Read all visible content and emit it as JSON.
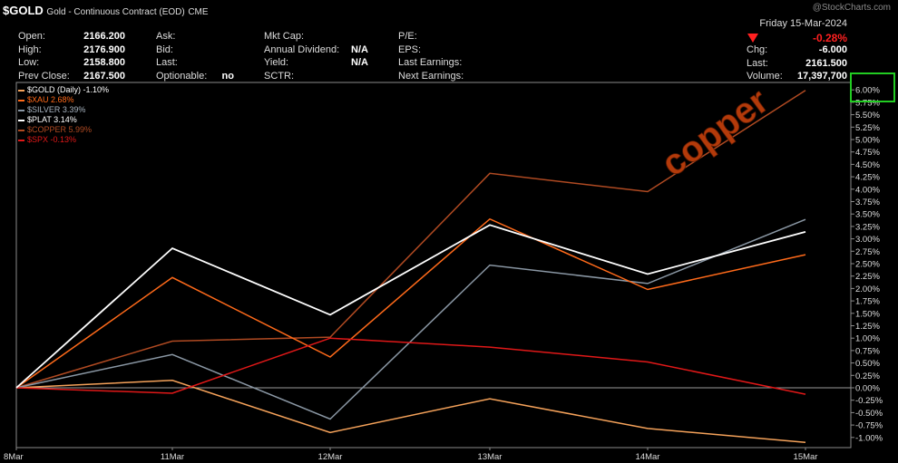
{
  "header": {
    "symbol": "$GOLD",
    "name": "Gold - Continuous Contract (EOD)",
    "exchange": "CME",
    "watermark": "@StockCharts.com",
    "date": "Friday 15-Mar-2024",
    "change_pct": "-0.28%"
  },
  "quote": {
    "col1": [
      {
        "label": "Open:",
        "value": "2166.200"
      },
      {
        "label": "High:",
        "value": "2176.900"
      },
      {
        "label": "Low:",
        "value": "2158.800"
      },
      {
        "label": "Prev Close:",
        "value": "2167.500"
      }
    ],
    "col2": [
      {
        "label": "Ask:",
        "value": ""
      },
      {
        "label": "Bid:",
        "value": ""
      },
      {
        "label": "Last:",
        "value": ""
      },
      {
        "label": "Optionable:",
        "value": "no"
      }
    ],
    "col3": [
      {
        "label": "Mkt Cap:",
        "value": ""
      },
      {
        "label": "Annual Dividend:",
        "value": "N/A"
      },
      {
        "label": "Yield:",
        "value": "N/A"
      },
      {
        "label": "SCTR:",
        "value": ""
      }
    ],
    "col4": [
      {
        "label": "P/E:",
        "value": ""
      },
      {
        "label": "EPS:",
        "value": ""
      },
      {
        "label": "Last Earnings:",
        "value": ""
      },
      {
        "label": "Next Earnings:",
        "value": ""
      }
    ],
    "col5": [
      {
        "label": "Chg:",
        "value": "-6.000"
      },
      {
        "label": "Last:",
        "value": "2161.500"
      },
      {
        "label": "Volume:",
        "value": "17,397,700"
      }
    ]
  },
  "annotation": {
    "text": "copper",
    "color": "#b33a0a"
  },
  "chart_data": {
    "type": "line",
    "x": [
      "8Mar",
      "11Mar",
      "12Mar",
      "13Mar",
      "14Mar",
      "15Mar"
    ],
    "ylim": [
      -1.1,
      6.2
    ],
    "yticks": [
      "6.00%",
      "5.75%",
      "5.50%",
      "5.25%",
      "5.00%",
      "4.75%",
      "4.50%",
      "4.25%",
      "4.00%",
      "3.75%",
      "3.50%",
      "3.25%",
      "3.00%",
      "2.75%",
      "2.50%",
      "2.25%",
      "2.00%",
      "1.75%",
      "1.50%",
      "1.25%",
      "1.00%",
      "0.75%",
      "0.50%",
      "0.25%",
      "0.00%",
      "-0.25%",
      "-0.50%",
      "-0.75%",
      "-1.00%"
    ],
    "ytick_values": [
      6.0,
      5.75,
      5.5,
      5.25,
      5.0,
      4.75,
      4.5,
      4.25,
      4.0,
      3.75,
      3.5,
      3.25,
      3.0,
      2.75,
      2.5,
      2.25,
      2.0,
      1.75,
      1.5,
      1.25,
      1.0,
      0.75,
      0.5,
      0.25,
      0.0,
      -0.25,
      -0.5,
      -0.75,
      -1.0
    ],
    "grid": false,
    "legend_position": "top-left",
    "series": [
      {
        "name": "$GOLD (Daily) -1.10%",
        "color": "#f5a25a",
        "values": [
          0,
          0.15,
          -0.9,
          -0.22,
          -0.82,
          -1.1
        ]
      },
      {
        "name": "$XAU 2.68%",
        "color": "#ff6a1a",
        "values": [
          0,
          2.22,
          0.62,
          3.4,
          1.98,
          2.68
        ]
      },
      {
        "name": "$SILVER 3.39%",
        "color": "#8a97a4",
        "values": [
          0,
          0.67,
          -0.63,
          2.47,
          2.1,
          3.39
        ]
      },
      {
        "name": "$PLAT 3.14%",
        "color": "#ffffff",
        "values": [
          0,
          2.81,
          1.47,
          3.28,
          2.29,
          3.14
        ]
      },
      {
        "name": "$COPPER 5.99%",
        "color": "#b04a22",
        "values": [
          0,
          0.94,
          1.02,
          4.32,
          3.95,
          5.99
        ]
      },
      {
        "name": "$SPX -0.13%",
        "color": "#e01818",
        "values": [
          0,
          -0.11,
          1.0,
          0.82,
          0.52,
          -0.13
        ]
      }
    ]
  }
}
